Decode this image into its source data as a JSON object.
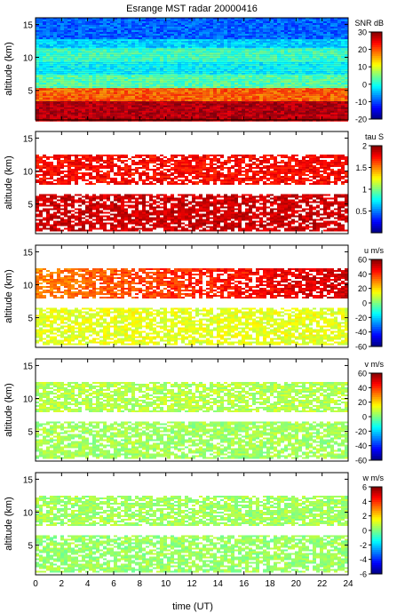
{
  "figure": {
    "title": "Esrange MST radar 20000416",
    "xlabel": "time (UT)"
  },
  "chart_data": [
    {
      "type": "heatmap",
      "title": "Esrange MST radar 20000416",
      "ylabel": "altitude (km)",
      "x_ticks": [
        "0",
        "2",
        "4",
        "6",
        "8",
        "10",
        "12",
        "14",
        "16",
        "18",
        "20",
        "22",
        "24"
      ],
      "y_ticks": [
        "5",
        "10",
        "15"
      ],
      "xlim": [
        0,
        24
      ],
      "ylim": [
        0.5,
        16
      ],
      "colorbar": {
        "label": "SNR dB",
        "range": [
          -20,
          30
        ],
        "ticks": [
          "30",
          "20",
          "10",
          "0",
          "-10",
          "-20"
        ]
      },
      "colormap": "jet",
      "layers": [
        {
          "from": 0.5,
          "to": 3.5,
          "value": 27
        },
        {
          "from": 3.5,
          "to": 5.5,
          "value": 19
        },
        {
          "from": 5.5,
          "to": 7.5,
          "value": 3
        },
        {
          "from": 7.5,
          "to": 9.5,
          "value": -1
        },
        {
          "from": 9.5,
          "to": 11.5,
          "value": 2
        },
        {
          "from": 11.5,
          "to": 13.0,
          "value": -3
        },
        {
          "from": 13.0,
          "to": 16.0,
          "value": -9
        }
      ]
    },
    {
      "type": "heatmap",
      "ylabel": "altitude (km)",
      "x_ticks": [
        "0",
        "2",
        "4",
        "6",
        "8",
        "10",
        "12",
        "14",
        "16",
        "18",
        "20",
        "22",
        "24"
      ],
      "y_ticks": [
        "5",
        "10",
        "15"
      ],
      "xlim": [
        0,
        24
      ],
      "ylim": [
        0.5,
        16
      ],
      "colorbar": {
        "label": "tau S",
        "range": [
          0,
          2
        ],
        "ticks": [
          "2",
          "1.5",
          "1",
          "0.5"
        ]
      },
      "colormap": "jet",
      "layers": [
        {
          "from": 1.0,
          "to": 6.5,
          "value": 1.85
        },
        {
          "from": 8.0,
          "to": 12.5,
          "value": 1.75
        }
      ]
    },
    {
      "type": "heatmap",
      "ylabel": "altitude (km)",
      "x_ticks": [
        "0",
        "2",
        "4",
        "6",
        "8",
        "10",
        "12",
        "14",
        "16",
        "18",
        "20",
        "22",
        "24"
      ],
      "y_ticks": [
        "5",
        "10",
        "15"
      ],
      "xlim": [
        0,
        24
      ],
      "ylim": [
        0.5,
        16
      ],
      "colorbar": {
        "label": "u m/s",
        "range": [
          -60,
          60
        ],
        "ticks": [
          "60",
          "40",
          "20",
          "0",
          "-20",
          "-40",
          "-60"
        ]
      },
      "colormap": "jet",
      "layers": [
        {
          "from": 1.0,
          "to": 6.5,
          "value": 12
        },
        {
          "from": 8.0,
          "to": 12.5,
          "value": 30
        }
      ]
    },
    {
      "type": "heatmap",
      "ylabel": "altitude (km)",
      "x_ticks": [
        "0",
        "2",
        "4",
        "6",
        "8",
        "10",
        "12",
        "14",
        "16",
        "18",
        "20",
        "22",
        "24"
      ],
      "y_ticks": [
        "5",
        "10",
        "15"
      ],
      "xlim": [
        0,
        24
      ],
      "ylim": [
        0.5,
        16
      ],
      "colorbar": {
        "label": "v m/s",
        "range": [
          -60,
          60
        ],
        "ticks": [
          "60",
          "40",
          "20",
          "0",
          "-20",
          "-40",
          "-60"
        ]
      },
      "colormap": "jet",
      "layers": [
        {
          "from": 1.0,
          "to": 6.5,
          "value": 4
        },
        {
          "from": 8.0,
          "to": 12.5,
          "value": 6
        }
      ]
    },
    {
      "type": "heatmap",
      "ylabel": "altitude (km)",
      "x_ticks": [
        "0",
        "2",
        "4",
        "6",
        "8",
        "10",
        "12",
        "14",
        "16",
        "18",
        "20",
        "22",
        "24"
      ],
      "y_ticks": [
        "5",
        "10",
        "15"
      ],
      "xlim": [
        0,
        24
      ],
      "ylim": [
        0.5,
        16
      ],
      "colorbar": {
        "label": "w m/s",
        "range": [
          -6,
          6
        ],
        "ticks": [
          "6",
          "4",
          "2",
          "0",
          "-2",
          "-4",
          "-6"
        ]
      },
      "colormap": "jet",
      "layers": [
        {
          "from": 1.0,
          "to": 6.5,
          "value": 0.3
        },
        {
          "from": 8.0,
          "to": 12.5,
          "value": 0.4
        }
      ]
    }
  ]
}
